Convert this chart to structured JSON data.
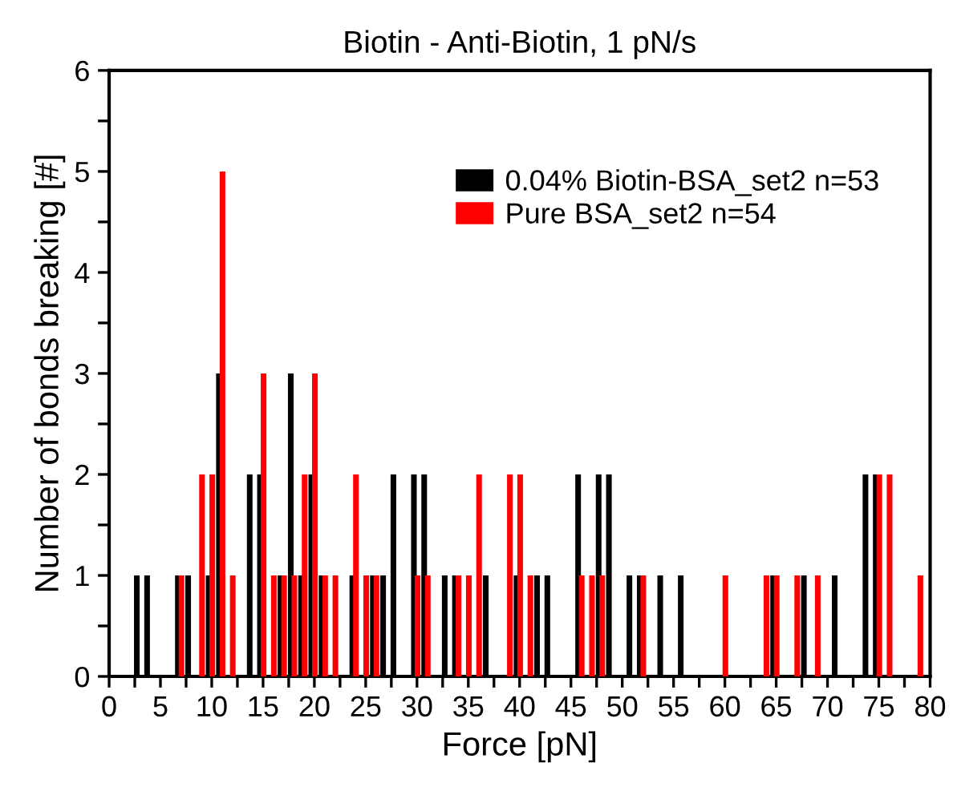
{
  "chart_data": {
    "type": "bar",
    "title": "Biotin - Anti-Biotin, 1 pN/s",
    "xlabel": "Force [pN]",
    "ylabel": "Number of bonds breaking [#]",
    "series": [
      {
        "name": "0.04% Biotin-BSA_set2 n=53",
        "color": "#000000",
        "x": [
          3,
          4,
          7,
          8,
          10,
          11,
          14,
          15,
          17,
          18,
          19,
          20,
          21,
          24,
          26,
          27,
          28,
          30,
          31,
          33,
          34,
          37,
          40,
          42,
          43,
          46,
          48,
          49,
          51,
          52,
          54,
          56,
          65,
          68,
          71,
          74,
          75
        ],
        "values": [
          1,
          1,
          1,
          1,
          1,
          3,
          2,
          2,
          1,
          3,
          1,
          2,
          1,
          1,
          1,
          1,
          2,
          2,
          2,
          1,
          1,
          1,
          1,
          1,
          1,
          2,
          2,
          2,
          1,
          1,
          1,
          1,
          1,
          1,
          1,
          2,
          2
        ]
      },
      {
        "name": "Pure BSA_set2 n=54",
        "color": "#ff0000",
        "x": [
          7,
          9,
          10,
          11,
          12,
          15,
          16,
          17,
          18,
          19,
          20,
          21,
          22,
          24,
          25,
          26,
          30,
          31,
          34,
          35,
          36,
          39,
          40,
          41,
          46,
          47,
          48,
          52,
          60,
          64,
          65,
          67,
          69,
          75,
          76,
          79
        ],
        "values": [
          1,
          2,
          2,
          5,
          1,
          3,
          1,
          1,
          1,
          2,
          3,
          1,
          1,
          2,
          1,
          1,
          1,
          1,
          1,
          1,
          2,
          2,
          2,
          1,
          1,
          1,
          1,
          1,
          1,
          1,
          1,
          1,
          1,
          2,
          2,
          1
        ]
      }
    ],
    "xlim": [
      0,
      80
    ],
    "ylim": [
      0,
      6
    ],
    "xticks": [
      0,
      {
        "value": 2.5,
        "label": null
      },
      5,
      {
        "value": 7.5,
        "label": null
      },
      10,
      {
        "value": 12.5,
        "label": null
      },
      15,
      {
        "value": 17.5,
        "label": null
      },
      20,
      {
        "value": 22.5,
        "label": null
      },
      25,
      {
        "value": 27.5,
        "label": null
      },
      30,
      {
        "value": 32.5,
        "label": null
      },
      35,
      {
        "value": 37.5,
        "label": null
      },
      40,
      {
        "value": 42.5,
        "label": null
      },
      45,
      {
        "value": 47.5,
        "label": null
      },
      50,
      {
        "value": 52.5,
        "label": null
      },
      55,
      {
        "value": 57.5,
        "label": null
      },
      60,
      {
        "value": 62.5,
        "label": null
      },
      65,
      {
        "value": 67.5,
        "label": null
      },
      70,
      {
        "value": 72.5,
        "label": null
      },
      75,
      {
        "value": 77.5,
        "label": null
      },
      80
    ],
    "yticks": [
      0,
      {
        "value": 0.5,
        "label": null
      },
      1,
      {
        "value": 1.5,
        "label": null
      },
      2,
      {
        "value": 2.5,
        "label": null
      },
      3,
      {
        "value": 3.5,
        "label": null
      },
      4,
      {
        "value": 4.5,
        "label": null
      },
      5,
      {
        "value": 5.5,
        "label": null
      },
      6
    ],
    "legend": "top right",
    "grid": false
  }
}
